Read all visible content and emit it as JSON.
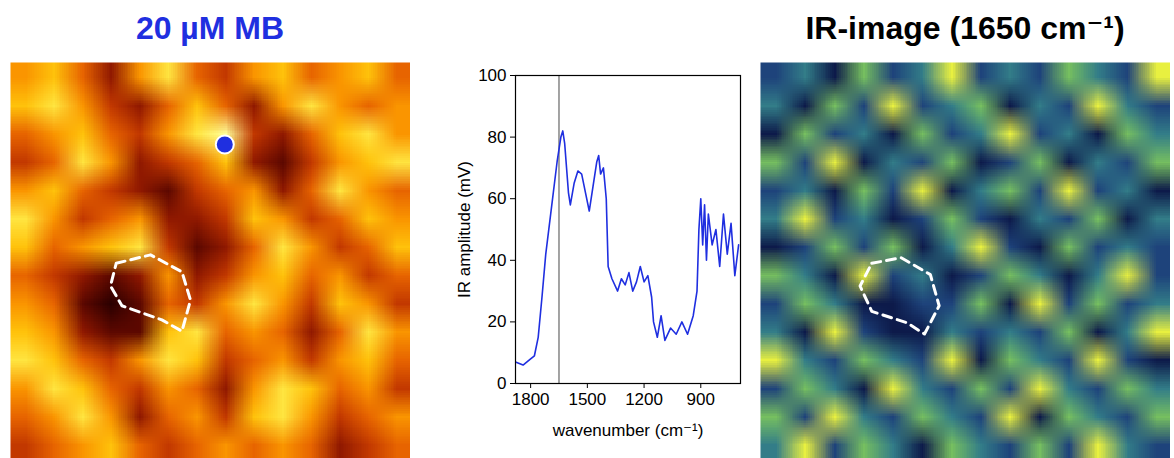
{
  "chart_data": [
    {
      "type": "heatmap",
      "title": "20 µM MB",
      "values": [
        [
          6,
          7,
          5,
          3,
          6,
          8,
          5,
          4,
          6,
          7,
          5,
          6,
          7,
          5
        ],
        [
          7,
          8,
          6,
          4,
          3,
          5,
          7,
          5,
          3,
          6,
          8,
          6,
          5,
          6
        ],
        [
          5,
          6,
          7,
          5,
          4,
          6,
          8,
          9,
          4,
          3,
          5,
          7,
          8,
          6
        ],
        [
          4,
          5,
          8,
          6,
          3,
          4,
          5,
          7,
          3,
          2,
          4,
          6,
          7,
          8
        ],
        [
          6,
          7,
          5,
          4,
          3,
          2,
          4,
          5,
          6,
          3,
          5,
          8,
          6,
          5
        ],
        [
          8,
          6,
          4,
          5,
          6,
          3,
          3,
          4,
          7,
          6,
          4,
          5,
          7,
          6
        ],
        [
          7,
          5,
          6,
          7,
          8,
          4,
          2,
          3,
          5,
          8,
          6,
          4,
          5,
          7
        ],
        [
          5,
          4,
          3,
          2,
          3,
          6,
          3,
          4,
          6,
          7,
          5,
          6,
          4,
          5
        ],
        [
          6,
          5,
          2,
          1,
          2,
          5,
          4,
          6,
          8,
          6,
          4,
          7,
          6,
          4
        ],
        [
          7,
          6,
          3,
          2,
          2,
          7,
          8,
          5,
          6,
          5,
          3,
          5,
          8,
          6
        ],
        [
          8,
          7,
          5,
          4,
          6,
          8,
          7,
          4,
          5,
          6,
          4,
          6,
          7,
          5
        ],
        [
          6,
          8,
          7,
          5,
          4,
          6,
          5,
          3,
          6,
          8,
          7,
          5,
          6,
          4
        ],
        [
          5,
          6,
          8,
          6,
          3,
          5,
          6,
          4,
          7,
          8,
          6,
          4,
          5,
          6
        ],
        [
          4,
          5,
          6,
          7,
          5,
          4,
          5,
          6,
          5,
          6,
          5,
          3,
          4,
          5
        ]
      ],
      "spot": [
        7.5,
        2.9
      ],
      "outline": [
        [
          3.7,
          7.1
        ],
        [
          4.9,
          6.8
        ],
        [
          6.0,
          7.4
        ],
        [
          6.3,
          8.4
        ],
        [
          6.0,
          9.5
        ],
        [
          5.3,
          9.1
        ],
        [
          3.9,
          8.6
        ],
        [
          3.5,
          7.9
        ],
        [
          3.7,
          7.1
        ]
      ],
      "tick_labels": false
    },
    {
      "type": "line",
      "xlabel": "wavenumber (cm⁻¹)",
      "ylabel": "IR amplitude (mV)",
      "x": [
        1880,
        1840,
        1800,
        1780,
        1760,
        1740,
        1720,
        1700,
        1680,
        1660,
        1640,
        1630,
        1620,
        1600,
        1590,
        1570,
        1550,
        1530,
        1510,
        1490,
        1470,
        1450,
        1440,
        1430,
        1415,
        1400,
        1390,
        1370,
        1340,
        1320,
        1300,
        1280,
        1260,
        1240,
        1220,
        1200,
        1180,
        1160,
        1150,
        1130,
        1110,
        1090,
        1060,
        1030,
        1000,
        970,
        940,
        920,
        910,
        900,
        890,
        880,
        870,
        860,
        840,
        820,
        800,
        780,
        760,
        740,
        720,
        700
      ],
      "values": [
        7,
        6,
        8,
        9,
        15,
        28,
        42,
        52,
        62,
        72,
        80,
        82,
        78,
        62,
        58,
        65,
        69,
        68,
        62,
        56,
        64,
        72,
        74,
        68,
        70,
        60,
        38,
        34,
        30,
        34,
        32,
        36,
        30,
        33,
        38,
        33,
        35,
        28,
        20,
        15,
        22,
        14,
        18,
        16,
        20,
        16,
        22,
        30,
        50,
        60,
        45,
        58,
        40,
        55,
        45,
        50,
        38,
        55,
        42,
        52,
        35,
        45
      ],
      "color": "#1f2fe0",
      "vline": 1650,
      "xlim": [
        1880,
        690
      ],
      "xticks": [
        1800,
        1500,
        1200,
        900
      ],
      "ylim": [
        0,
        100
      ],
      "yticks": [
        0,
        20,
        40,
        60,
        80,
        100
      ]
    },
    {
      "type": "heatmap",
      "title": "IR-image (1650 cm⁻¹)",
      "values": [
        [
          3,
          4,
          2,
          5,
          3,
          4,
          6,
          3,
          4,
          3,
          5,
          4,
          3,
          6
        ],
        [
          4,
          2,
          5,
          3,
          6,
          3,
          4,
          5,
          2,
          4,
          3,
          6,
          4,
          3
        ],
        [
          2,
          5,
          3,
          4,
          2,
          5,
          3,
          4,
          6,
          3,
          4,
          2,
          5,
          4
        ],
        [
          5,
          3,
          6,
          2,
          4,
          3,
          5,
          2,
          3,
          5,
          2,
          4,
          3,
          5
        ],
        [
          3,
          4,
          2,
          5,
          3,
          6,
          2,
          4,
          5,
          3,
          6,
          3,
          4,
          2
        ],
        [
          4,
          6,
          3,
          4,
          2,
          3,
          5,
          3,
          2,
          4,
          3,
          5,
          2,
          4
        ],
        [
          2,
          3,
          5,
          3,
          5,
          2,
          4,
          6,
          3,
          2,
          5,
          3,
          4,
          3
        ],
        [
          5,
          4,
          2,
          6,
          3,
          4,
          2,
          3,
          5,
          4,
          2,
          4,
          6,
          3
        ],
        [
          3,
          5,
          4,
          2,
          2,
          3,
          3,
          5,
          2,
          6,
          3,
          5,
          3,
          4
        ],
        [
          4,
          2,
          6,
          3,
          2,
          2,
          4,
          3,
          4,
          3,
          5,
          2,
          4,
          6
        ],
        [
          6,
          4,
          3,
          5,
          4,
          3,
          6,
          2,
          5,
          4,
          3,
          6,
          3,
          2
        ],
        [
          3,
          5,
          4,
          2,
          6,
          4,
          3,
          5,
          3,
          6,
          4,
          3,
          5,
          4
        ],
        [
          5,
          3,
          6,
          4,
          3,
          5,
          4,
          3,
          6,
          2,
          5,
          4,
          3,
          5
        ],
        [
          4,
          6,
          3,
          5,
          4,
          2,
          5,
          4,
          3,
          5,
          3,
          6,
          4,
          3
        ]
      ],
      "outline": [
        [
          3.8,
          7.1
        ],
        [
          4.8,
          6.9
        ],
        [
          5.8,
          7.5
        ],
        [
          6.1,
          8.6
        ],
        [
          5.6,
          9.6
        ],
        [
          5.0,
          9.2
        ],
        [
          3.8,
          8.8
        ],
        [
          3.4,
          7.9
        ],
        [
          3.8,
          7.1
        ]
      ],
      "tick_labels": false
    }
  ]
}
